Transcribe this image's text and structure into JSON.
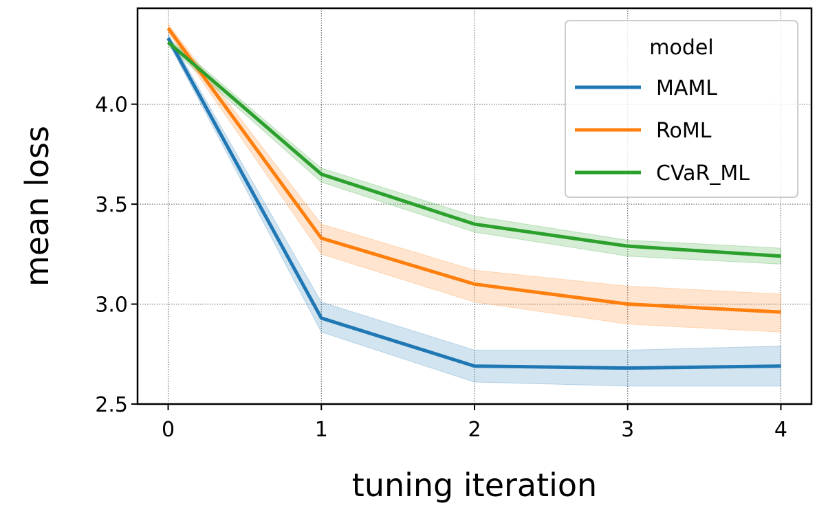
{
  "chart_data": {
    "type": "line",
    "xlabel": "tuning iteration",
    "ylabel": "mean loss",
    "x": [
      0,
      1,
      2,
      3,
      4
    ],
    "xticks": [
      "0",
      "1",
      "2",
      "3",
      "4"
    ],
    "yticks": [
      "2.5",
      "3.0",
      "3.5",
      "4.0"
    ],
    "ytick_values": [
      2.5,
      3.0,
      3.5,
      4.0
    ],
    "xlim": [
      -0.2,
      4.2
    ],
    "ylim": [
      2.5,
      4.48
    ],
    "grid": true,
    "legend": {
      "title": "model",
      "position": "top-right"
    },
    "series": [
      {
        "name": "MAML",
        "color": "#1f77b4",
        "values": [
          4.33,
          2.93,
          2.69,
          2.68,
          2.69
        ],
        "lower": [
          4.31,
          2.86,
          2.61,
          2.59,
          2.59
        ],
        "upper": [
          4.35,
          3.01,
          2.77,
          2.77,
          2.79
        ]
      },
      {
        "name": "RoML",
        "color": "#ff7f0e",
        "values": [
          4.38,
          3.33,
          3.1,
          3.0,
          2.96
        ],
        "lower": [
          4.36,
          3.25,
          3.01,
          2.9,
          2.86
        ],
        "upper": [
          4.4,
          3.4,
          3.17,
          3.09,
          3.05
        ]
      },
      {
        "name": "CVaR_ML",
        "color": "#2ca02c",
        "values": [
          4.31,
          3.65,
          3.4,
          3.29,
          3.24
        ],
        "lower": [
          4.29,
          3.61,
          3.36,
          3.24,
          3.2
        ],
        "upper": [
          4.33,
          3.68,
          3.44,
          3.32,
          3.28
        ]
      }
    ]
  }
}
